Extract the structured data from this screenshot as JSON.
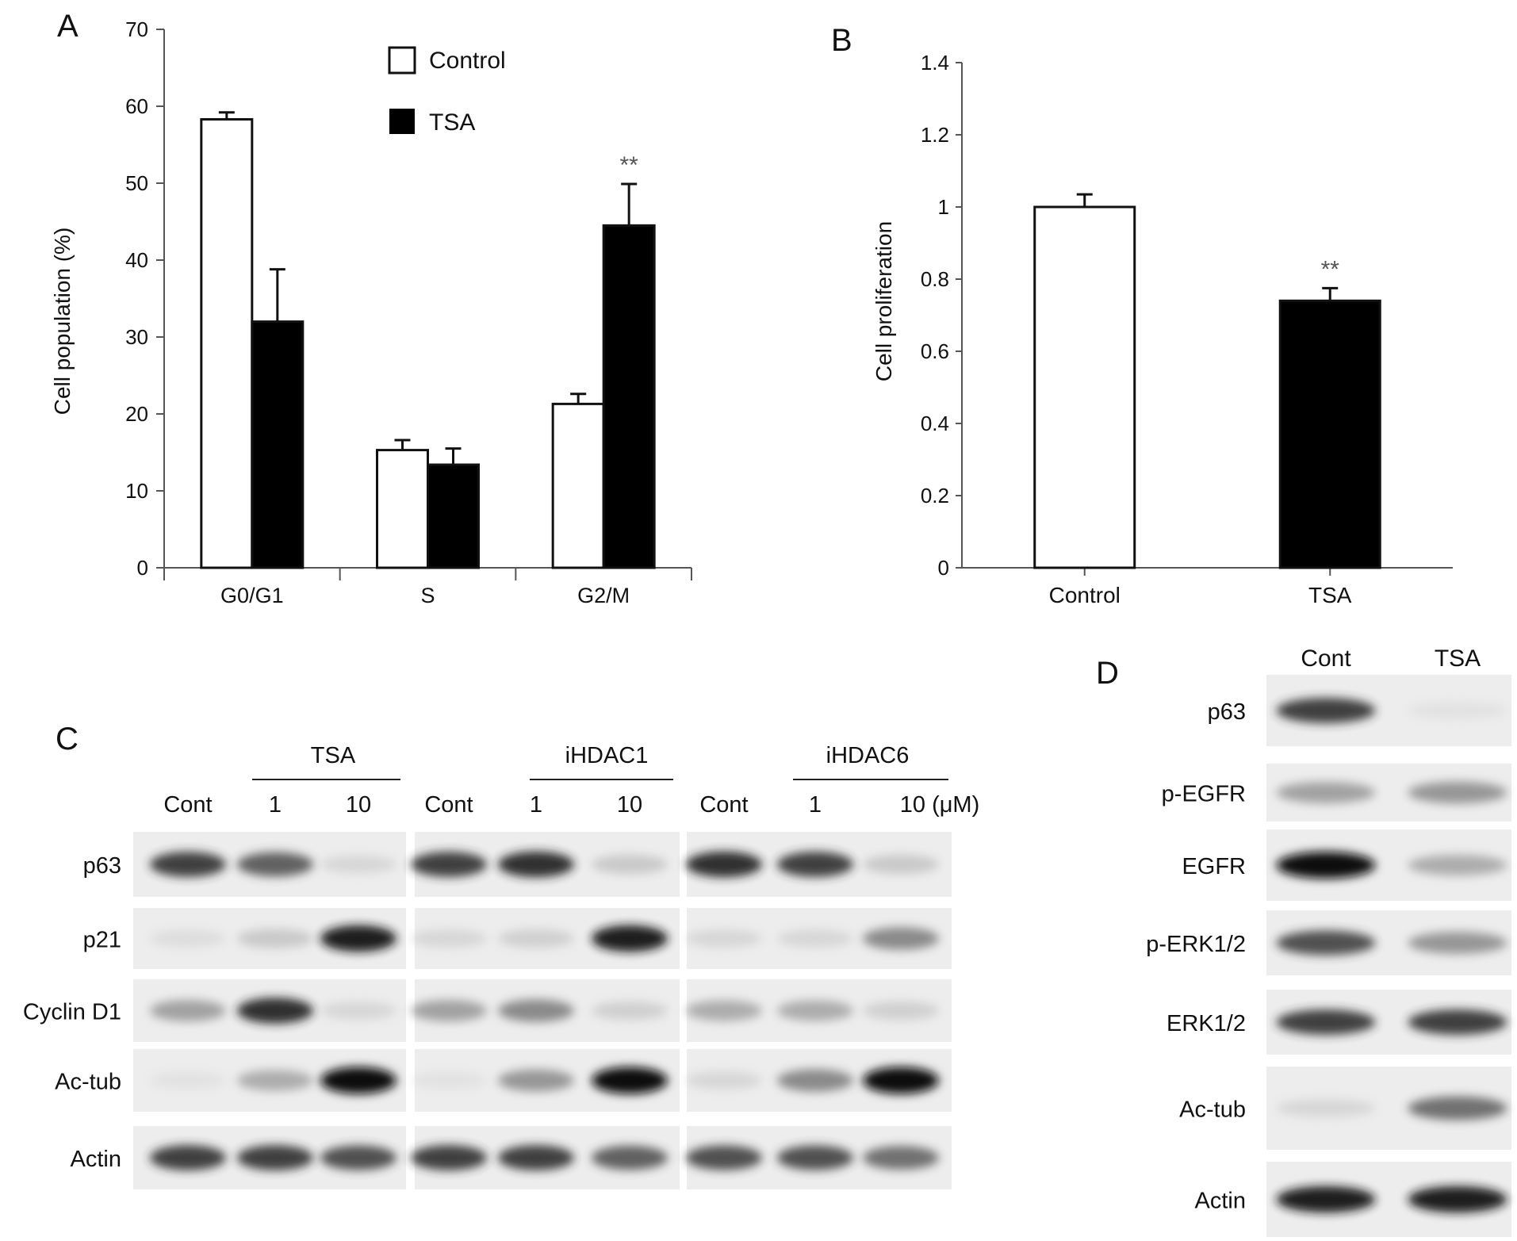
{
  "chart_data": [
    {
      "panel": "A",
      "type": "bar",
      "categories": [
        "G0/G1",
        "S",
        "G2/M"
      ],
      "series": [
        {
          "name": "Control",
          "values": [
            58.3,
            15.3,
            21.3
          ],
          "errors": [
            0.9,
            1.3,
            1.3
          ],
          "color": "#ffffff"
        },
        {
          "name": "TSA",
          "values": [
            32.0,
            13.4,
            44.5
          ],
          "errors": [
            6.8,
            2.1,
            5.4
          ],
          "color": "#000000"
        }
      ],
      "ylabel": "Cell population (%)",
      "ylim": [
        0,
        70
      ],
      "yticks": [
        0,
        10,
        20,
        30,
        40,
        50,
        60,
        70
      ],
      "legend": "top-center",
      "annotations": [
        {
          "category": "G2/M",
          "series": "TSA",
          "text": "**"
        }
      ],
      "grid": false
    },
    {
      "panel": "B",
      "type": "bar",
      "categories": [
        "Control",
        "TSA"
      ],
      "values": [
        1.0,
        0.74
      ],
      "errors": [
        0.035,
        0.035
      ],
      "colors": [
        "#ffffff",
        "#000000"
      ],
      "ylabel": "Cell proliferation",
      "ylim": [
        0,
        1.4
      ],
      "yticks": [
        "0",
        "0.2",
        "0.4",
        "0.6",
        "0.8",
        "1",
        "1.2",
        "1.4"
      ],
      "annotations": [
        {
          "category": "TSA",
          "text": "**"
        }
      ],
      "grid": false
    }
  ],
  "panel_labels": [
    "A",
    "B",
    "C",
    "D"
  ],
  "blot_c": {
    "groups": [
      "TSA",
      "iHDAC1",
      "iHDAC6"
    ],
    "lanes": [
      "Cont",
      "1",
      "10",
      "Cont",
      "1",
      "10",
      "Cont",
      "1",
      "10 (μM)"
    ],
    "rows": [
      {
        "label": "p63",
        "intensity": [
          0.85,
          0.75,
          0.2,
          0.85,
          0.9,
          0.3,
          0.9,
          0.85,
          0.3
        ]
      },
      {
        "label": "p21",
        "intensity": [
          0.15,
          0.3,
          0.95,
          0.2,
          0.25,
          0.95,
          0.2,
          0.2,
          0.6
        ]
      },
      {
        "label": "Cyclin D1",
        "intensity": [
          0.5,
          0.9,
          0.2,
          0.5,
          0.6,
          0.25,
          0.45,
          0.45,
          0.25
        ]
      },
      {
        "label": "Ac-tub",
        "intensity": [
          0.1,
          0.45,
          1.0,
          0.1,
          0.55,
          1.0,
          0.2,
          0.6,
          1.0
        ]
      },
      {
        "label": "Actin",
        "intensity": [
          0.85,
          0.85,
          0.8,
          0.85,
          0.85,
          0.75,
          0.8,
          0.8,
          0.7
        ]
      }
    ]
  },
  "blot_d": {
    "lanes": [
      "Cont",
      "TSA"
    ],
    "rows": [
      {
        "label": "p63",
        "intensity": [
          0.85,
          0.1
        ]
      },
      {
        "label": "p-EGFR",
        "intensity": [
          0.5,
          0.55
        ]
      },
      {
        "label": "EGFR",
        "intensity": [
          1.0,
          0.45
        ]
      },
      {
        "label": "p-ERK1/2",
        "intensity": [
          0.8,
          0.55
        ]
      },
      {
        "label": "ERK1/2",
        "intensity": [
          0.85,
          0.85
        ]
      },
      {
        "label": "Ac-tub",
        "intensity": [
          0.2,
          0.7
        ]
      },
      {
        "label": "Actin",
        "intensity": [
          0.95,
          0.95
        ]
      }
    ]
  }
}
